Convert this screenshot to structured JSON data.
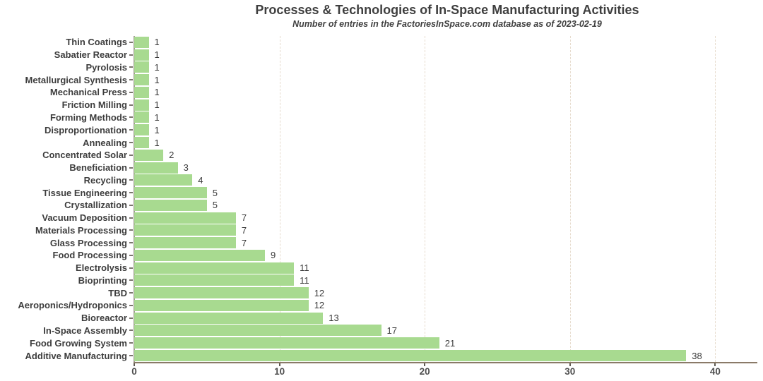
{
  "chart_data": {
    "type": "bar",
    "orientation": "horizontal",
    "title": "Processes & Technologies of In-Space Manufacturing Activities",
    "subtitle": "Number of entries in the FactoriesInSpace.com database as of 2023-02-19",
    "categories": [
      "Thin Coatings",
      "Sabatier Reactor",
      "Pyrolosis",
      "Metallurgical Synthesis",
      "Mechanical Press",
      "Friction Milling",
      "Forming Methods",
      "Disproportionation",
      "Annealing",
      "Concentrated Solar",
      "Beneficiation",
      "Recycling",
      "Tissue Engineering",
      "Crystallization",
      "Vacuum Deposition",
      "Materials Processing",
      "Glass Processing",
      "Food Processing",
      "Electrolysis",
      "Bioprinting",
      "TBD",
      "Aeroponics/Hydroponics",
      "Bioreactor",
      "In-Space Assembly",
      "Food Growing System",
      "Additive Manufacturing"
    ],
    "values": [
      1,
      1,
      1,
      1,
      1,
      1,
      1,
      1,
      1,
      2,
      3,
      4,
      5,
      5,
      7,
      7,
      7,
      9,
      11,
      11,
      12,
      12,
      13,
      17,
      21,
      38
    ],
    "value_labels": [
      "1",
      "1",
      "1",
      "1",
      "1",
      "1",
      "1",
      "1",
      "1",
      "2",
      "3",
      "4",
      "5",
      "5",
      "7",
      "7",
      "7",
      "9",
      "11",
      "11",
      "12",
      "12",
      "13",
      "17",
      "21",
      "38"
    ],
    "xlabel": "",
    "ylabel": "",
    "xlim": [
      0,
      42.9
    ],
    "xticks": [
      0,
      10,
      20,
      30,
      40
    ],
    "xtick_labels": [
      "0",
      "10",
      "20",
      "30",
      "40"
    ],
    "grid": "vertical dashed lines at major x ticks",
    "legend": "none",
    "colors": {
      "bar_fill": "#a8da90",
      "background": "#ffffff",
      "title_text": "#3f3f3f",
      "category_text": "#3d3d3d",
      "value_text": "#3a3a3a",
      "tick_label_text": "#4f4f4f",
      "x_axis_line": "#8a7a68",
      "y_axis_line": "#a09a92",
      "gridline": "#e6dbcd"
    }
  }
}
